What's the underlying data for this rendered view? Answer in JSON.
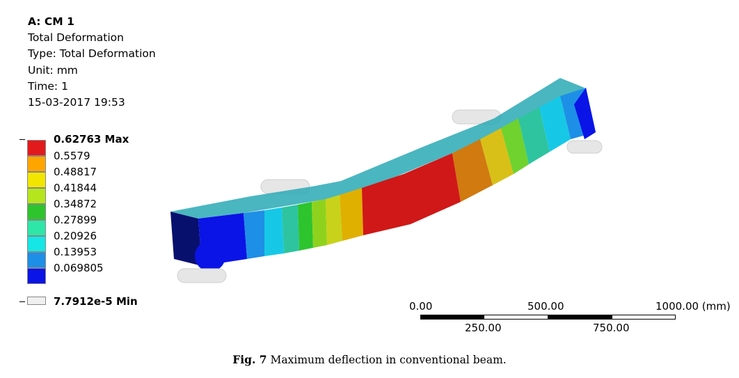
{
  "header": {
    "title": "A: CM 1",
    "line1": "Total Deformation",
    "line2": "Type: Total Deformation",
    "line3": "Unit: mm",
    "line4": "Time: 1",
    "line5": "15-03-2017 19:53"
  },
  "legend": {
    "max_label": "0.62763 Max",
    "min_label": "7.7912e-5 Min",
    "levels": [
      "0.5579",
      "0.48817",
      "0.41844",
      "0.34872",
      "0.27899",
      "0.20926",
      "0.13953",
      "0.069805"
    ],
    "colors": [
      "#e31a1c",
      "#ffa500",
      "#f2e600",
      "#b5e61d",
      "#2ec42e",
      "#2ee6a8",
      "#17e6e6",
      "#1e8fe6",
      "#0a14e6",
      "#f0f0f0"
    ]
  },
  "scale_bar": {
    "top_labels": [
      "0.00",
      "500.00",
      "1000.00 (mm)"
    ],
    "bottom_labels": [
      "250.00",
      "750.00"
    ]
  },
  "caption": {
    "fig_label": "Fig. 7",
    "text": " Maximum deflection in conventional beam."
  }
}
